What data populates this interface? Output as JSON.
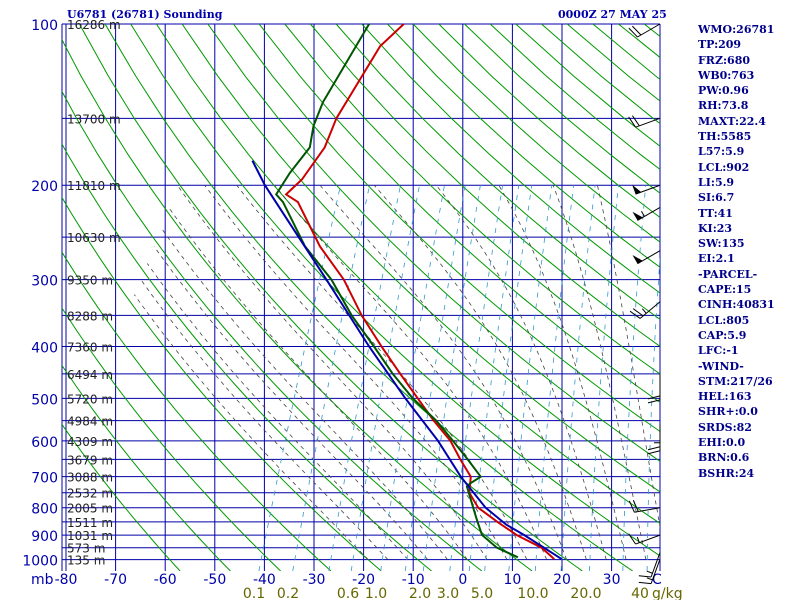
{
  "header": {
    "station": "U6781 (26781) Sounding",
    "time": "0000Z 27 MAY 25"
  },
  "chart_data": {
    "type": "line",
    "subtype": "skew-t log-p sounding",
    "x_unit_label": "C",
    "y_unit_label": "mb",
    "temperature_ticks": [
      "-80",
      "-70",
      "-60",
      "-50",
      "-40",
      "-30",
      "-20",
      "-10",
      "0",
      "10",
      "20",
      "30"
    ],
    "temperature_values": [
      -80,
      -70,
      -60,
      -50,
      -40,
      -30,
      -20,
      -10,
      0,
      10,
      20,
      30
    ],
    "pressure_ticks": [
      "100",
      "200",
      "300",
      "400",
      "500",
      "600",
      "700",
      "800",
      "900",
      "1000"
    ],
    "pressure_values": [
      100,
      200,
      300,
      400,
      500,
      600,
      700,
      800,
      900,
      1000
    ],
    "mixing_ratio_labels": [
      "0.1",
      "0.2",
      "0.6",
      "1.0",
      "2.0",
      "3.0",
      "5.0",
      "10.0",
      "20.0",
      "40"
    ],
    "mixing_ratio_unit": "g/kg",
    "height_labels": [
      {
        "p": 100,
        "text": "16286 m"
      },
      {
        "p": 150,
        "text": "13700 m"
      },
      {
        "p": 200,
        "text": "11810 m"
      },
      {
        "p": 250,
        "text": "10630 m"
      },
      {
        "p": 300,
        "text": "9350 m"
      },
      {
        "p": 350,
        "text": "8288 m"
      },
      {
        "p": 400,
        "text": "7360 m"
      },
      {
        "p": 450,
        "text": "6494 m"
      },
      {
        "p": 500,
        "text": "5720 m"
      },
      {
        "p": 550,
        "text": "4984 m"
      },
      {
        "p": 600,
        "text": "4309 m"
      },
      {
        "p": 650,
        "text": "3679 m"
      },
      {
        "p": 700,
        "text": "3088 m"
      },
      {
        "p": 750,
        "text": "2532 m"
      },
      {
        "p": 800,
        "text": "2005 m"
      },
      {
        "p": 850,
        "text": "1511 m"
      },
      {
        "p": 900,
        "text": "1031 m"
      },
      {
        "p": 950,
        "text": "573 m"
      },
      {
        "p": 1000,
        "text": "135 m"
      }
    ],
    "series": [
      {
        "name": "Temperature",
        "color": "#cc0000",
        "points": [
          [
            998,
            17.5
          ],
          [
            970,
            15.5
          ],
          [
            950,
            14.0
          ],
          [
            900,
            8.0
          ],
          [
            850,
            3.0
          ],
          [
            800,
            -2.0
          ],
          [
            750,
            -5.0
          ],
          [
            700,
            -6.0
          ],
          [
            650,
            -9.5
          ],
          [
            600,
            -13.0
          ],
          [
            550,
            -18.0
          ],
          [
            500,
            -23.0
          ],
          [
            450,
            -28.5
          ],
          [
            400,
            -34.5
          ],
          [
            350,
            -41.0
          ],
          [
            300,
            -47.5
          ],
          [
            260,
            -55.0
          ],
          [
            215,
            -63.0
          ],
          [
            208,
            -66.0
          ],
          [
            195,
            -64.0
          ],
          [
            170,
            -62.0
          ],
          [
            150,
            -62.0
          ],
          [
            110,
            -59.0
          ],
          [
            100,
            -56.0
          ]
        ]
      },
      {
        "name": "Dewpoint",
        "color": "#005500",
        "points": [
          [
            990,
            10.0
          ],
          [
            950,
            5.0
          ],
          [
            900,
            1.0
          ],
          [
            850,
            -1.0
          ],
          [
            800,
            -3.0
          ],
          [
            730,
            -6.0
          ],
          [
            720,
            -5.5
          ],
          [
            700,
            -4.0
          ],
          [
            650,
            -8.0
          ],
          [
            600,
            -12.5
          ],
          [
            550,
            -17.5
          ],
          [
            500,
            -24.0
          ],
          [
            450,
            -30.0
          ],
          [
            400,
            -36.0
          ],
          [
            350,
            -43.0
          ],
          [
            300,
            -50.0
          ],
          [
            260,
            -58.0
          ],
          [
            215,
            -66.0
          ],
          [
            208,
            -68.0
          ],
          [
            190,
            -67.0
          ],
          [
            170,
            -65.0
          ],
          [
            155,
            -66.0
          ],
          [
            140,
            -66.0
          ],
          [
            100,
            -63.0
          ]
        ]
      },
      {
        "name": "Parcel",
        "color": "#0000aa",
        "points": [
          [
            998,
            19.0
          ],
          [
            950,
            14.5
          ],
          [
            900,
            9.5
          ],
          [
            860,
            5.0
          ],
          [
            800,
            -0.5
          ],
          [
            700,
            -8.0
          ],
          [
            600,
            -15.5
          ],
          [
            500,
            -25.5
          ],
          [
            400,
            -37.0
          ],
          [
            300,
            -51.0
          ],
          [
            250,
            -60.0
          ],
          [
            200,
            -71.0
          ],
          [
            180,
            -75.5
          ]
        ]
      }
    ],
    "wind_barbs": [
      {
        "p": 100,
        "dir": 240,
        "spd": 20
      },
      {
        "p": 150,
        "dir": 250,
        "spd": 20
      },
      {
        "p": 200,
        "dir": 250,
        "spd": 50
      },
      {
        "p": 220,
        "dir": 240,
        "spd": 55
      },
      {
        "p": 265,
        "dir": 240,
        "spd": 50
      },
      {
        "p": 330,
        "dir": 230,
        "spd": 25
      },
      {
        "p": 450,
        "dir": 180,
        "spd": 20
      },
      {
        "p": 560,
        "dir": 180,
        "spd": 25
      },
      {
        "p": 800,
        "dir": 260,
        "spd": 20
      },
      {
        "p": 900,
        "dir": 250,
        "spd": 15
      },
      {
        "p": 970,
        "dir": 200,
        "spd": 15
      },
      {
        "p": 998,
        "dir": 200,
        "spd": 15
      }
    ]
  },
  "indices": [
    "WMO:26781",
    "TP:209",
    "FRZ:680",
    "WB0:763",
    "PW:0.96",
    "RH:73.8",
    "MAXT:22.4",
    "TH:5585",
    "L57:5.9",
    "LCL:902",
    "LI:5.9",
    "SI:6.7",
    "TT:41",
    "KI:23",
    "SW:135",
    "EI:2.1",
    "-PARCEL-",
    "CAPE:15",
    "CINH:40831",
    "LCL:805",
    "CAP:5.9",
    "LFC:-1",
    "-WIND-",
    "STM:217/26",
    "HEL:163",
    "SHR+:0.0",
    "SRDS:82",
    "EHI:0.0",
    "BRN:0.6",
    "BSHR:24"
  ],
  "colors": {
    "grid": "#0000aa",
    "dry_adiabat": "#009900",
    "moist_adiabat": "#444444",
    "mixing_ratio": "#3399cc",
    "axis_text": "#0000aa",
    "mixing_text": "#666600"
  }
}
